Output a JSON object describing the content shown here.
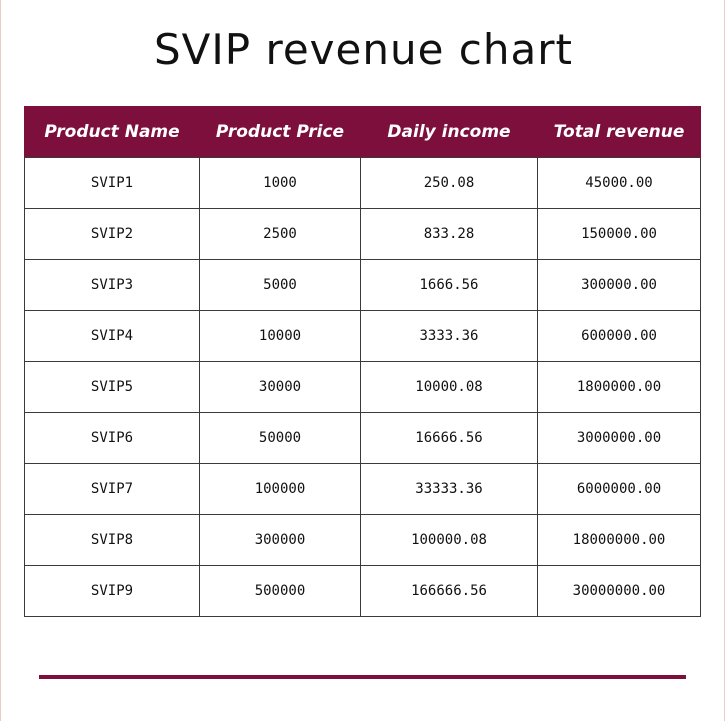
{
  "title": "SVIP revenue chart",
  "colors": {
    "header_bg": "#7d0f3d",
    "header_text": "#ffffff",
    "rule": "#7d0f3d"
  },
  "table": {
    "headers": [
      "Product Name",
      "Product Price",
      "Daily income",
      "Total revenue"
    ],
    "rows": [
      [
        "SVIP1",
        "1000",
        "250.08",
        "45000.00"
      ],
      [
        "SVIP2",
        "2500",
        "833.28",
        "150000.00"
      ],
      [
        "SVIP3",
        "5000",
        "1666.56",
        "300000.00"
      ],
      [
        "SVIP4",
        "10000",
        "3333.36",
        "600000.00"
      ],
      [
        "SVIP5",
        "30000",
        "10000.08",
        "1800000.00"
      ],
      [
        "SVIP6",
        "50000",
        "16666.56",
        "3000000.00"
      ],
      [
        "SVIP7",
        "100000",
        "33333.36",
        "6000000.00"
      ],
      [
        "SVIP8",
        "300000",
        "100000.08",
        "18000000.00"
      ],
      [
        "SVIP9",
        "500000",
        "166666.56",
        "30000000.00"
      ]
    ]
  }
}
